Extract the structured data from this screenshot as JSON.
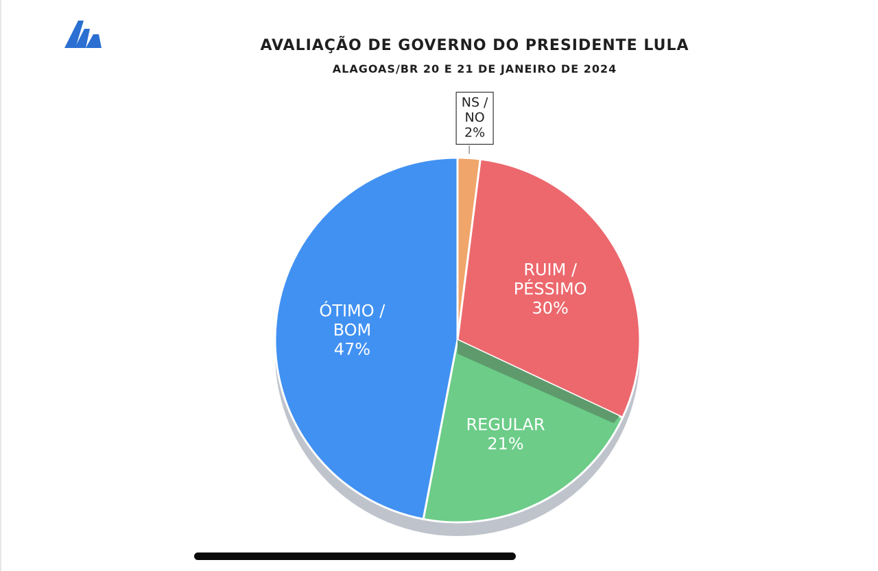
{
  "header": {
    "title": "AVALIAÇÃO DE GOVERNO DO PRESIDENTE LULA",
    "subtitle": "ALAGOAS/BR 20 E 21 DE JANEIRO DE 2024"
  },
  "logo": {
    "icon": "brand-logo-icon",
    "color": "#2a6fd1"
  },
  "chart_data": {
    "type": "pie",
    "title": "AVALIAÇÃO DE GOVERNO DO PRESIDENTE LULA",
    "subtitle": "ALAGOAS/BR 20 E 21 DE JANEIRO DE 2024",
    "slices": [
      {
        "name": "NS / NO",
        "label_lines": [
          "NS /",
          "NO",
          "2%"
        ],
        "value": 2,
        "color": "#f0a56b",
        "label_style": "callout"
      },
      {
        "name": "RUIM / PÉSSIMO",
        "label_lines": [
          "RUIM /",
          "PÉSSIMO",
          "30%"
        ],
        "value": 30,
        "color": "#ec686d",
        "label_style": "inside"
      },
      {
        "name": "REGULAR",
        "label_lines": [
          "REGULAR",
          "21%"
        ],
        "value": 21,
        "color": "#6ccc88",
        "label_style": "inside"
      },
      {
        "name": "ÓTIMO / BOM",
        "label_lines": [
          "ÓTIMO /",
          "BOM",
          "47%"
        ],
        "value": 47,
        "color": "#4191f2",
        "label_style": "inside"
      }
    ],
    "start_angle": "top",
    "direction": "clockwise",
    "legend": "none"
  }
}
